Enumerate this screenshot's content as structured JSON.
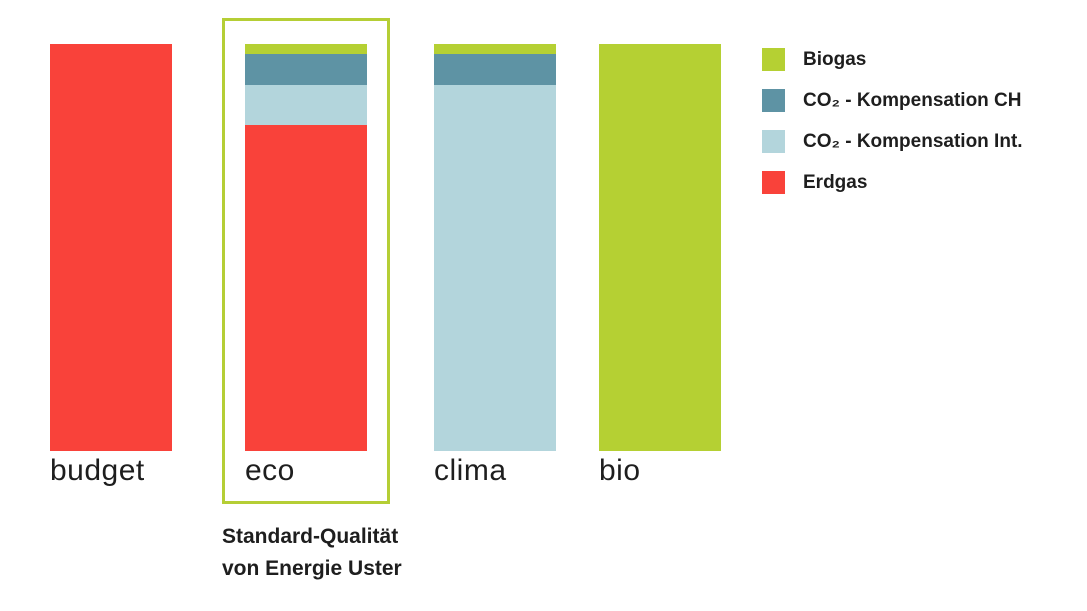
{
  "chart_data": {
    "type": "bar",
    "stacked": true,
    "orientation": "vertical",
    "title": "",
    "xlabel": "",
    "ylabel": "",
    "ylim": [
      0,
      100
    ],
    "grid": false,
    "axes_hidden": true,
    "legend_position": "right",
    "categories": [
      "budget",
      "eco",
      "clima",
      "bio"
    ],
    "series": [
      {
        "name": "Biogas",
        "color": "#b5d033",
        "values": [
          0,
          2.5,
          2.5,
          100
        ]
      },
      {
        "name": "CO₂ - Kompensation CH",
        "color": "#5e93a4",
        "values": [
          0,
          7.5,
          7.5,
          0
        ]
      },
      {
        "name": "CO₂ - Kompensation Int.",
        "color": "#b3d5dc",
        "values": [
          0,
          10,
          90,
          0
        ]
      },
      {
        "name": "Erdgas",
        "color": "#f9423a",
        "values": [
          100,
          80,
          0,
          0
        ]
      }
    ]
  },
  "highlight": {
    "category": "eco",
    "box_color": "#b5ce35",
    "caption_line1": "Standard-Qualität",
    "caption_line2": "von Energie Uster"
  }
}
